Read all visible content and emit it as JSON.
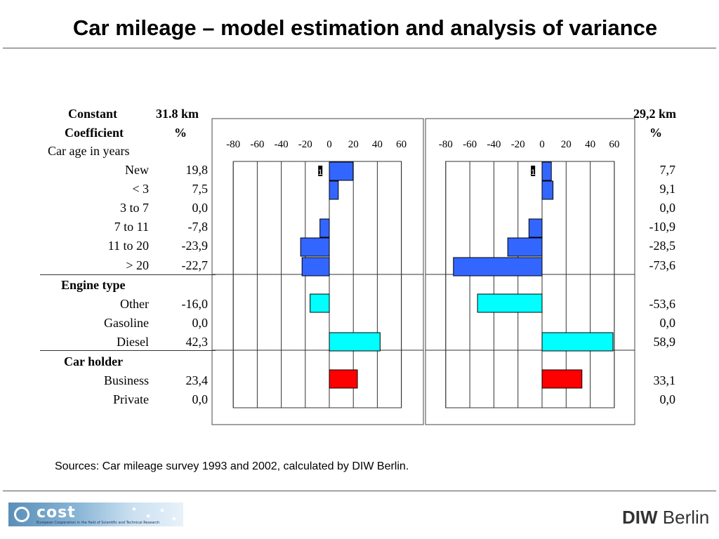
{
  "title": "Car mileage – model estimation and analysis of variance",
  "sources": "Sources: Car mileage survey 1993 and 2002, calculated by DIW Berlin.",
  "logos": {
    "cost_text": "cost",
    "cost_sub": "European Cooperation in the field of Scientific and Technical Research",
    "diw_bold": "DIW",
    "diw_rest": " Berlin"
  },
  "table": {
    "constant_label": "Constant",
    "coefficient_label": "Coefficient",
    "constant_left": "31.8 km",
    "constant_right": "29,2 km",
    "unit_left": "%",
    "unit_right": "%",
    "groups": [
      {
        "name": "Car age in years",
        "rows": [
          {
            "label": "New",
            "left": "19,8",
            "right": "7,7"
          },
          {
            "label": "< 3",
            "left": "7,5",
            "right": "9,1"
          },
          {
            "label": "3 to 7",
            "left": "0,0",
            "right": "0,0"
          },
          {
            "label": "7 to 11",
            "left": "-7,8",
            "right": "-10,9"
          },
          {
            "label": "11 to 20",
            "left": "-23,9",
            "right": "-28,5"
          },
          {
            "label": "> 20",
            "left": "-22,7",
            "right": "-73,6"
          }
        ]
      },
      {
        "name": "Engine type",
        "rows": [
          {
            "label": "Other",
            "left": "-16,0",
            "right": "-53,6"
          },
          {
            "label": "Gasoline",
            "left": "0,0",
            "right": "0,0"
          },
          {
            "label": "Diesel",
            "left": "42,3",
            "right": "58,9"
          }
        ]
      },
      {
        "name": "Car holder",
        "rows": [
          {
            "label": "Business",
            "left": "23,4",
            "right": "33,1"
          },
          {
            "label": "Private",
            "left": "0,0",
            "right": "0,0"
          }
        ]
      }
    ]
  },
  "chart_data": [
    {
      "type": "bar",
      "orientation": "horizontal",
      "categories": [
        "New",
        "< 3",
        "3 to 7",
        "7 to 11",
        "11 to 20",
        "> 20",
        "Other",
        "Gasoline",
        "Diesel",
        "Business",
        "Private"
      ],
      "values": [
        19.8,
        7.5,
        0.0,
        -7.8,
        -23.9,
        -22.7,
        -16.0,
        0.0,
        42.3,
        23.4,
        0.0
      ],
      "xlim": [
        -80,
        60
      ],
      "ticks": [
        "-80",
        "-60",
        "-40",
        "-20",
        "0",
        "20",
        "40",
        "60"
      ],
      "grid": true,
      "marker_label": "1",
      "colors": {
        "Car age in years": "#3366ff",
        "Engine type": "#00ffff",
        "Car holder": "#ff0000"
      }
    },
    {
      "type": "bar",
      "orientation": "horizontal",
      "categories": [
        "New",
        "< 3",
        "3 to 7",
        "7 to 11",
        "11 to 20",
        "> 20",
        "Other",
        "Gasoline",
        "Diesel",
        "Business",
        "Private"
      ],
      "values": [
        7.7,
        9.1,
        0.0,
        -10.9,
        -28.5,
        -73.6,
        -53.6,
        0.0,
        58.9,
        33.1,
        0.0
      ],
      "xlim": [
        -80,
        60
      ],
      "ticks": [
        "-80",
        "-60",
        "-40",
        "-20",
        "0",
        "20",
        "40",
        "60"
      ],
      "grid": true,
      "marker_label": "1",
      "colors": {
        "Car age in years": "#3366ff",
        "Engine type": "#00ffff",
        "Car holder": "#ff0000"
      }
    }
  ]
}
